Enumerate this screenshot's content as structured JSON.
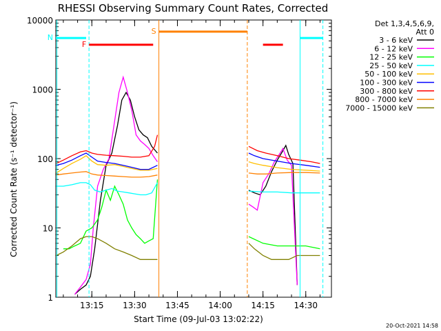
{
  "chart_data": {
    "type": "line",
    "title": "RHESSI Observing Summary Count Rates, Corrected",
    "xlabel": "Start Time (09-Jul-03 13:02:22)",
    "ylabel": "Corrected Count Rate (s⁻¹ detector⁻¹)",
    "y_scale": "log",
    "xlim": [
      "13:02:22",
      "14:39:00"
    ],
    "ylim": [
      1,
      10000
    ],
    "x_ticks": [
      "13:15",
      "13:30",
      "13:45",
      "14:00",
      "14:15",
      "14:30"
    ],
    "y_ticks": [
      "1",
      "10",
      "100",
      "1000",
      "10000"
    ],
    "legend_header": [
      "Det 1,3,4,5,6,9,",
      "Att 0"
    ],
    "legend_position": "right",
    "timestamp": "20-Oct-2021 14:58",
    "gaps": [
      [
        "13:38:30",
        "14:10:00"
      ]
    ],
    "series": [
      {
        "name": "3 - 6 keV",
        "color": "#000000",
        "x": [
          "13:09:00",
          "13:11:00",
          "13:13:00",
          "13:14:30",
          "13:16:00",
          "13:18:00",
          "13:20:00",
          "13:22:00",
          "13:24:00",
          "13:25:30",
          "13:27:00",
          "13:28:30",
          "13:30:00",
          "13:31:30",
          "13:33:00",
          "13:34:30",
          "13:36:00",
          "13:38:00",
          "14:10:00",
          "14:12:00",
          "14:14:00",
          "14:16:00",
          "14:18:00",
          "14:20:00",
          "14:22:00",
          "14:23:00",
          "14:24:00",
          "14:25:30",
          "14:27:00"
        ],
        "values": [
          1.1,
          1.3,
          1.5,
          2,
          5,
          25,
          80,
          120,
          300,
          700,
          900,
          700,
          400,
          260,
          220,
          200,
          150,
          120,
          35,
          32,
          30,
          40,
          65,
          95,
          130,
          155,
          115,
          85,
          1.5
        ]
      },
      {
        "name": "6 - 12 keV",
        "color": "#ff00ff",
        "x": [
          "13:09:00",
          "13:11:00",
          "13:13:00",
          "13:14:30",
          "13:15:30",
          "13:17:00",
          "13:19:00",
          "13:21:00",
          "13:23:00",
          "13:24:30",
          "13:26:00",
          "13:27:30",
          "13:29:00",
          "13:30:30",
          "13:32:00",
          "13:33:30",
          "13:35:00",
          "13:36:30",
          "13:38:00",
          "14:10:00",
          "14:11:30",
          "14:13:00",
          "14:15:00",
          "14:17:00",
          "14:19:00",
          "14:21:00",
          "14:22:00",
          "14:23:30",
          "14:25:00",
          "14:27:00"
        ],
        "values": [
          1.1,
          1.4,
          1.8,
          3,
          10,
          40,
          70,
          100,
          350,
          900,
          1500,
          900,
          500,
          220,
          180,
          160,
          140,
          110,
          90,
          22,
          20,
          18,
          45,
          60,
          90,
          120,
          140,
          95,
          80,
          1.5
        ]
      },
      {
        "name": "12 - 25 keV",
        "color": "#00ff00",
        "x": [
          "13:05:00",
          "13:07:00",
          "13:09:00",
          "13:11:00",
          "13:13:00",
          "13:15:00",
          "13:17:00",
          "13:18:30",
          "13:20:00",
          "13:21:30",
          "13:23:00",
          "13:24:30",
          "13:26:00",
          "13:27:30",
          "13:29:00",
          "13:30:30",
          "13:32:00",
          "13:33:30",
          "13:35:00",
          "13:36:30",
          "13:38:00",
          "14:10:00",
          "14:15:00",
          "14:20:00",
          "14:25:00",
          "14:30:00",
          "14:35:00"
        ],
        "values": [
          5,
          5,
          5.5,
          6,
          9,
          10,
          13,
          20,
          35,
          25,
          40,
          30,
          22,
          13,
          10,
          8,
          7,
          6,
          6.5,
          7,
          50,
          7.5,
          6,
          5.5,
          5.5,
          5.5,
          5
        ]
      },
      {
        "name": "25 - 50 keV",
        "color": "#00ffff",
        "x": [
          "13:02:30",
          "13:05:00",
          "13:08:00",
          "13:11:00",
          "13:13:00",
          "13:14:30",
          "13:16:00",
          "13:18:00",
          "13:20:00",
          "13:22:00",
          "13:24:00",
          "13:26:00",
          "13:28:00",
          "13:30:00",
          "13:32:00",
          "13:34:00",
          "13:36:00",
          "13:38:00",
          "14:10:00",
          "14:15:00",
          "14:20:00",
          "14:25:00",
          "14:30:00",
          "14:35:00"
        ],
        "values": [
          40,
          40,
          42,
          45,
          45,
          42,
          35,
          33,
          35,
          37,
          34,
          33,
          32,
          31,
          30,
          30,
          32,
          45,
          34,
          33,
          33,
          32,
          32,
          32
        ]
      },
      {
        "name": "50 - 100 keV",
        "color": "#ffbf00",
        "x": [
          "13:02:30",
          "13:05:00",
          "13:08:00",
          "13:11:00",
          "13:13:00",
          "13:15:00",
          "13:17:00",
          "13:20:00",
          "13:23:00",
          "13:26:00",
          "13:29:00",
          "13:32:00",
          "13:35:00",
          "13:38:00",
          "14:10:00",
          "14:12:00",
          "14:15:00",
          "14:20:00",
          "14:25:00",
          "14:30:00",
          "14:35:00"
        ],
        "values": [
          62,
          72,
          85,
          98,
          110,
          92,
          82,
          80,
          82,
          77,
          72,
          68,
          68,
          72,
          90,
          85,
          80,
          74,
          70,
          68,
          66
        ]
      },
      {
        "name": "100 - 300 keV",
        "color": "#0000ff",
        "x": [
          "13:02:30",
          "13:05:00",
          "13:08:00",
          "13:11:00",
          "13:13:00",
          "13:15:00",
          "13:17:00",
          "13:20:00",
          "13:23:00",
          "13:26:00",
          "13:29:00",
          "13:32:00",
          "13:35:00",
          "13:38:00",
          "14:10:00",
          "14:12:00",
          "14:15:00",
          "14:20:00",
          "14:25:00",
          "14:30:00",
          "14:35:00"
        ],
        "values": [
          80,
          85,
          95,
          110,
          120,
          105,
          92,
          88,
          85,
          80,
          75,
          70,
          70,
          80,
          120,
          110,
          100,
          92,
          85,
          80,
          75
        ]
      },
      {
        "name": "300 - 800 keV",
        "color": "#ff0000",
        "x": [
          "13:02:30",
          "13:05:00",
          "13:08:00",
          "13:11:00",
          "13:13:00",
          "13:15:00",
          "13:17:00",
          "13:20:00",
          "13:23:00",
          "13:26:00",
          "13:29:00",
          "13:32:00",
          "13:35:00",
          "13:37:00",
          "13:38:00",
          "14:10:00",
          "14:13:00",
          "14:16:00",
          "14:20:00",
          "14:24:00",
          "14:28:00",
          "14:32:00",
          "14:35:00"
        ],
        "values": [
          85,
          95,
          110,
          125,
          130,
          120,
          115,
          112,
          110,
          108,
          105,
          105,
          110,
          150,
          220,
          150,
          130,
          120,
          110,
          100,
          95,
          90,
          85
        ]
      },
      {
        "name": "800 - 7000 keV",
        "color": "#ff8000",
        "x": [
          "13:02:30",
          "13:05:00",
          "13:08:00",
          "13:11:00",
          "13:13:00",
          "13:15:00",
          "13:17:00",
          "13:20:00",
          "13:23:00",
          "13:26:00",
          "13:29:00",
          "13:32:00",
          "13:35:00",
          "13:38:00",
          "14:10:00",
          "14:13:00",
          "14:16:00",
          "14:20:00",
          "14:25:00",
          "14:30:00",
          "14:35:00"
        ],
        "values": [
          58,
          60,
          62,
          64,
          65,
          60,
          58,
          57,
          56,
          55,
          54,
          54,
          55,
          58,
          62,
          60,
          60,
          62,
          63,
          63,
          62
        ]
      },
      {
        "name": "7000 - 15000 keV",
        "color": "#808000",
        "x": [
          "13:02:30",
          "13:05:00",
          "13:08:00",
          "13:11:00",
          "13:13:00",
          "13:15:00",
          "13:17:00",
          "13:20:00",
          "13:23:00",
          "13:26:00",
          "13:29:00",
          "13:32:00",
          "13:35:00",
          "13:38:00",
          "14:10:00",
          "14:12:00",
          "14:15:00",
          "14:18:00",
          "14:21:00",
          "14:24:00",
          "14:27:00",
          "14:30:00",
          "14:35:00"
        ],
        "values": [
          4,
          4.5,
          5.5,
          7,
          7.5,
          7.5,
          7,
          6,
          5,
          4.5,
          4,
          3.5,
          3.5,
          3.5,
          6,
          5,
          4,
          3.5,
          3.5,
          3.5,
          4,
          4,
          4
        ]
      }
    ],
    "annotations": [
      {
        "type": "interval",
        "label": "N",
        "color": "#00ffff",
        "segments": [
          [
            "13:02:22",
            "13:13:00"
          ],
          [
            "14:28:00",
            "14:36:00"
          ]
        ],
        "level": 5500
      },
      {
        "type": "interval",
        "label": "F",
        "color": "#ff0000",
        "segments": [
          [
            "13:14:00",
            "13:36:30"
          ],
          [
            "14:15:00",
            "14:22:00"
          ]
        ],
        "level": 4400
      },
      {
        "type": "interval",
        "label": "S",
        "color": "#ff8000",
        "segments": [
          [
            "13:38:30",
            "14:09:30"
          ]
        ],
        "level": 6800
      }
    ],
    "vlines": [
      {
        "x": "13:02:45",
        "color": "#00ffff",
        "style": "solid"
      },
      {
        "x": "13:14:00",
        "color": "#00ffff",
        "style": "dashed"
      },
      {
        "x": "13:38:30",
        "color": "#ff8000",
        "style": "solid"
      },
      {
        "x": "14:09:30",
        "color": "#ff8000",
        "style": "dashed"
      },
      {
        "x": "14:28:00",
        "color": "#00ffff",
        "style": "solid"
      },
      {
        "x": "14:36:00",
        "color": "#00ffff",
        "style": "dashed"
      }
    ]
  }
}
